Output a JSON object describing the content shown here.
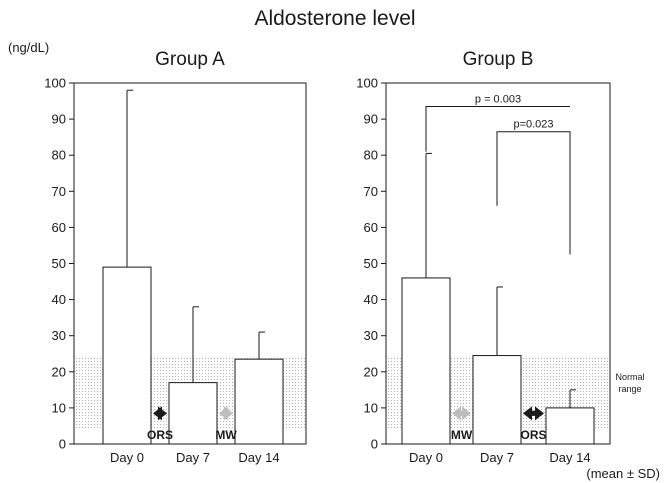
{
  "figure_title": "Aldosterone level",
  "y_unit": "(ng/dL)",
  "footnote": "(mean ± SD)",
  "normal_range_label": [
    "Normal",
    "range"
  ],
  "normal_range": [
    4,
    24
  ],
  "colors": {
    "stroke": "#1a1a1a",
    "bar_fill": "#ffffff",
    "band_dot": "#b8b8b8",
    "arrow_dark": "#1a1a1a",
    "arrow_light": "#bdbdbd"
  },
  "chart_data": [
    {
      "type": "bar",
      "title": "Group A",
      "categories": [
        "Day 0",
        "Day 7",
        "Day 14"
      ],
      "values": [
        49,
        17,
        23.5
      ],
      "error_upper": [
        98,
        38,
        31
      ],
      "ylim": [
        0,
        100
      ],
      "yticks": [
        0,
        10,
        20,
        30,
        40,
        50,
        60,
        70,
        80,
        90,
        100
      ],
      "grid": false,
      "arrows": [
        {
          "between": [
            0,
            1
          ],
          "label": "ORS",
          "style": "dark"
        },
        {
          "between": [
            1,
            2
          ],
          "label": "MW",
          "style": "light"
        }
      ],
      "significance": []
    },
    {
      "type": "bar",
      "title": "Group B",
      "categories": [
        "Day 0",
        "Day 7",
        "Day 14"
      ],
      "values": [
        46,
        24.5,
        10
      ],
      "error_upper": [
        80.5,
        43.5,
        15
      ],
      "ylim": [
        0,
        100
      ],
      "yticks": [
        0,
        10,
        20,
        30,
        40,
        50,
        60,
        70,
        80,
        90,
        100
      ],
      "grid": false,
      "arrows": [
        {
          "between": [
            0,
            1
          ],
          "label": "MW",
          "style": "light"
        },
        {
          "between": [
            1,
            2
          ],
          "label": "ORS",
          "style": "dark"
        }
      ],
      "significance": [
        {
          "from": 0,
          "to": 2,
          "y": 93.5,
          "left_drop": 81,
          "right_drop": null,
          "label": "p = 0.003"
        },
        {
          "from": 1,
          "to": 2,
          "y": 86.5,
          "left_drop": 66,
          "right_drop": 52.5,
          "label": "p=0.023"
        }
      ]
    }
  ]
}
